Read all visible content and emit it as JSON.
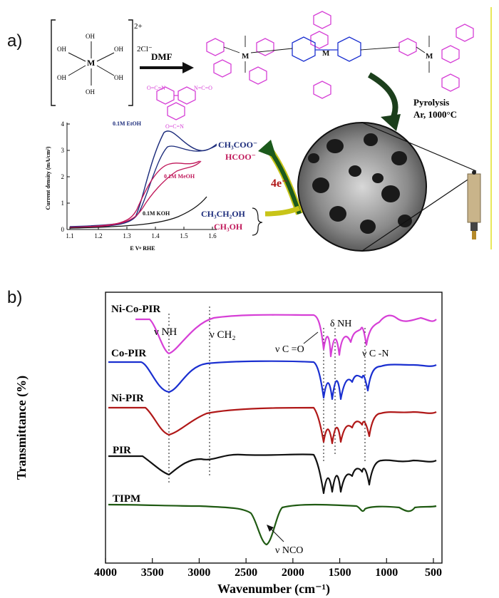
{
  "panel_a": {
    "label": "a)",
    "reactant": {
      "charge": "2+",
      "counter_ion": "2Cl⁻",
      "center": "M",
      "ligand": "OH",
      "h": "H"
    },
    "arrow_label": "DMF",
    "pyrolysis": {
      "line1": "Pyrolysis",
      "line2": "Ar, 1000°C"
    },
    "electron_label": "4e⁻",
    "products": [
      "CH₃COO⁻",
      "HCOO⁻"
    ],
    "reactants": [
      "CH₃CH₂OH",
      "CH₃OH"
    ],
    "cv": {
      "ylabel": "Current density (mA/cm²)",
      "xlabel": "E Vᵠ RHE",
      "xticks": [
        "1.1",
        "1.2",
        "1.3",
        "1.4",
        "1.5",
        "1.6"
      ],
      "yticks": [
        "0",
        "1",
        "2",
        "3",
        "4"
      ],
      "curve_labels": [
        "0.1M EtOH",
        "0.1M MeOH",
        "0.1M KOH"
      ]
    }
  },
  "panel_b": {
    "label": "b)",
    "ylabel": "Transmittance (%)",
    "xlabel": "Wavenumber (cm⁻¹)",
    "xticks": [
      "4000",
      "3500",
      "3000",
      "2500",
      "2000",
      "1500",
      "1000",
      "500"
    ],
    "annotations": {
      "nu_nh": "ν NH",
      "nu_ch2": "ν CH₂",
      "nu_co": "ν C =O",
      "delta_nh": "δ NH",
      "nu_cn": "ν C -N",
      "nu_nco": "ν NCO"
    },
    "series": [
      {
        "name": "Ni-Co-PIR",
        "color": "#d63fd6"
      },
      {
        "name": "Co-PIR",
        "color": "#1a2fd0"
      },
      {
        "name": "Ni-PIR",
        "color": "#b01818"
      },
      {
        "name": "PIR",
        "color": "#111111"
      },
      {
        "name": "TIPM",
        "color": "#1f5a12"
      }
    ]
  }
}
